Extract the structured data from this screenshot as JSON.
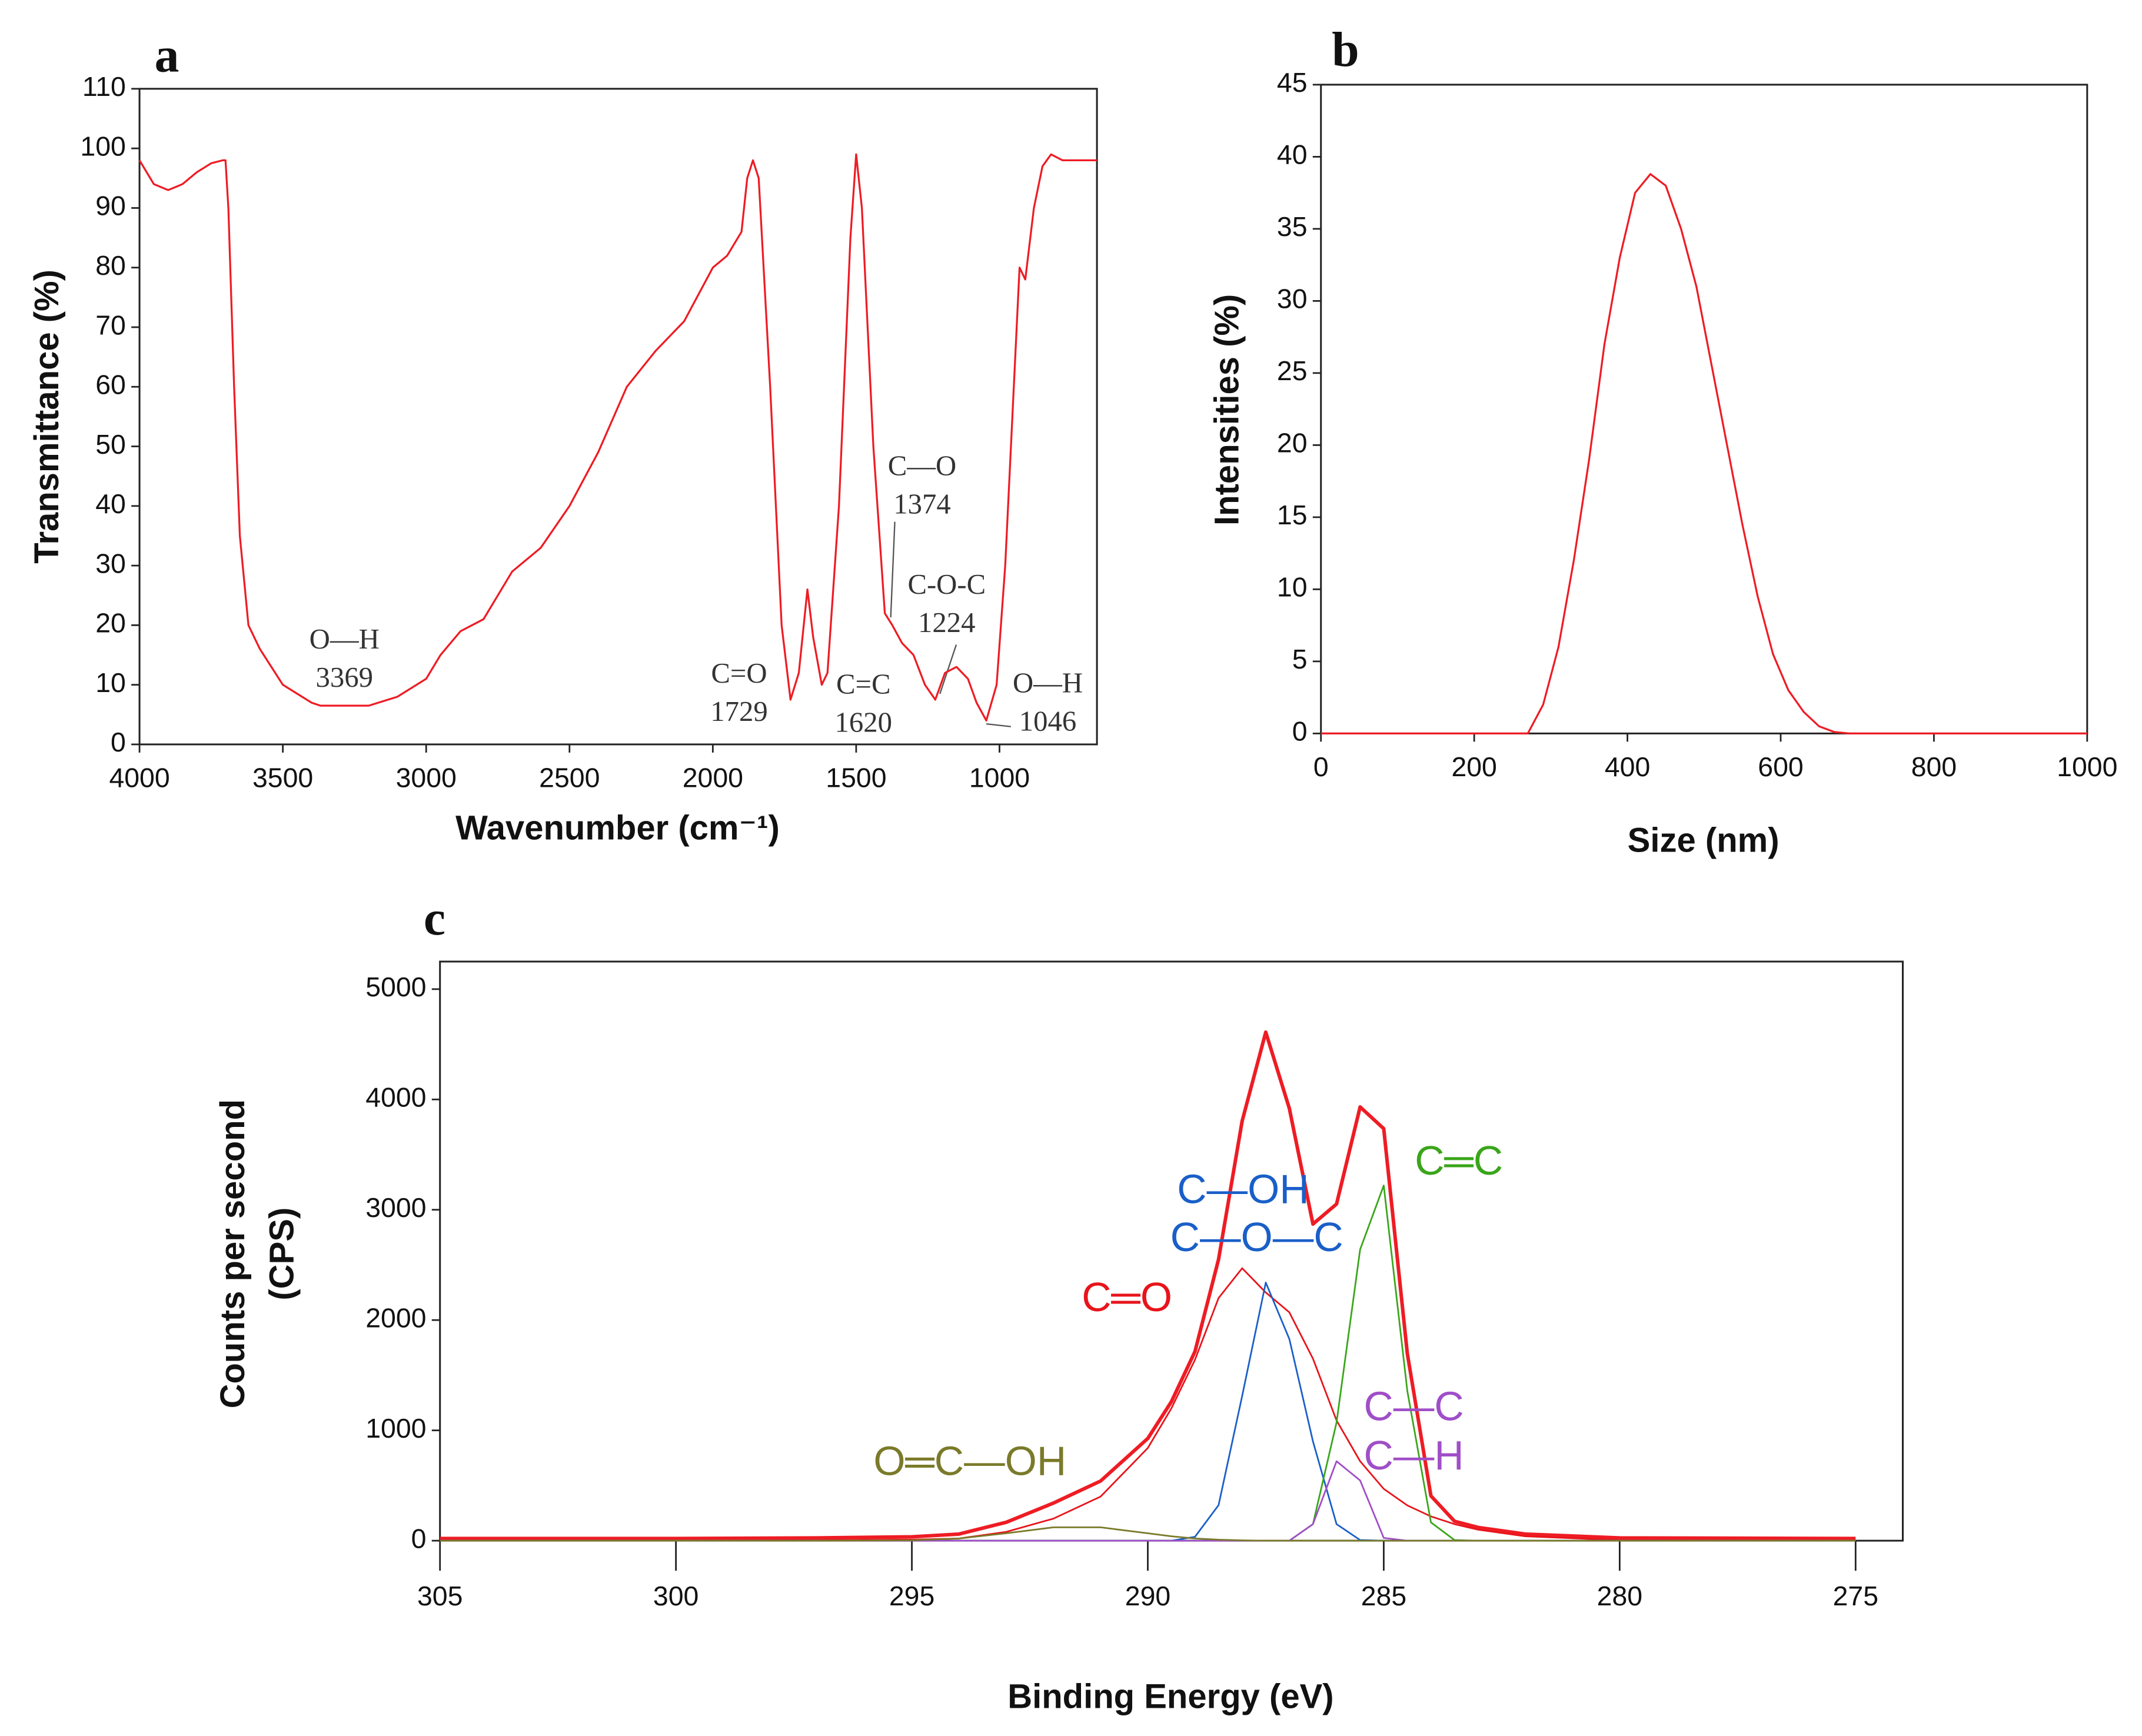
{
  "chart_data": [
    {
      "type": "line",
      "panel": "a",
      "xlabel": "Wavenumber (cm⁻¹)",
      "ylabel": "Transmittance (%)",
      "xlim": [
        4000,
        660
      ],
      "ylim": [
        0,
        110
      ],
      "xticks": [
        4000,
        3500,
        3000,
        2500,
        2000,
        1500,
        1000
      ],
      "yticks": [
        0,
        10,
        20,
        30,
        40,
        50,
        60,
        70,
        80,
        90,
        100,
        110
      ],
      "color": "#ee1c24",
      "x": [
        4000,
        3950,
        3900,
        3850,
        3800,
        3750,
        3710,
        3700,
        3690,
        3670,
        3650,
        3620,
        3580,
        3500,
        3400,
        3369,
        3300,
        3200,
        3100,
        3000,
        2950,
        2880,
        2800,
        2700,
        2650,
        2600,
        2500,
        2400,
        2300,
        2200,
        2100,
        2000,
        1950,
        1900,
        1880,
        1860,
        1840,
        1800,
        1760,
        1729,
        1700,
        1670,
        1650,
        1620,
        1600,
        1560,
        1520,
        1500,
        1480,
        1440,
        1400,
        1374,
        1340,
        1300,
        1260,
        1224,
        1190,
        1150,
        1110,
        1080,
        1046,
        1010,
        980,
        950,
        930,
        910,
        880,
        850,
        820,
        780,
        720,
        660
      ],
      "values": [
        98,
        94,
        93,
        94,
        96,
        97.5,
        98,
        98,
        90,
        60,
        35,
        20,
        16,
        10,
        7,
        6.5,
        6.5,
        6.5,
        8,
        11,
        15,
        19,
        21,
        29,
        31,
        33,
        40,
        49,
        60,
        66,
        71,
        80,
        82,
        86,
        95,
        98,
        95,
        60,
        20,
        7.5,
        12,
        26,
        18,
        10,
        12,
        40,
        85,
        99,
        90,
        50,
        22,
        20,
        17,
        15,
        10,
        7.5,
        12,
        13,
        11,
        7,
        4,
        10,
        30,
        60,
        80,
        78,
        90,
        97,
        99,
        98,
        98,
        98
      ],
      "annotations": [
        {
          "label": "O—H",
          "x": 3369
        },
        {
          "label": "C=O",
          "x": 1729
        },
        {
          "label": "C=C",
          "x": 1620
        },
        {
          "label": "C—O",
          "x": 1374
        },
        {
          "label": "C-O-C",
          "x": 1224
        },
        {
          "label": "O—H",
          "x": 1046
        }
      ]
    },
    {
      "type": "line",
      "panel": "b",
      "xlabel": "Size (nm)",
      "ylabel": "Intensities (%)",
      "xlim": [
        0,
        1000
      ],
      "ylim": [
        0,
        45
      ],
      "xticks": [
        0,
        200,
        400,
        600,
        800,
        1000
      ],
      "yticks": [
        0,
        5,
        10,
        15,
        20,
        25,
        30,
        35,
        40,
        45
      ],
      "color": "#ee1c24",
      "x": [
        0,
        270,
        290,
        310,
        330,
        350,
        370,
        390,
        410,
        430,
        450,
        470,
        490,
        510,
        530,
        550,
        570,
        590,
        610,
        630,
        650,
        670,
        690,
        1000
      ],
      "values": [
        0,
        0,
        2,
        6,
        12,
        19,
        27,
        33,
        37.5,
        38.8,
        38,
        35,
        31,
        25.5,
        20,
        14.5,
        9.5,
        5.5,
        3,
        1.5,
        0.5,
        0.1,
        0,
        0
      ]
    },
    {
      "type": "line",
      "panel": "c",
      "xlabel": "Binding Energy (eV)",
      "ylabel": [
        "Counts per second",
        "(CPS)"
      ],
      "xlim": [
        305,
        274
      ],
      "ylim": [
        0,
        5250
      ],
      "xticks": [
        305,
        300,
        295,
        290,
        285,
        280,
        275
      ],
      "yticks": [
        0,
        1000,
        2000,
        3000,
        4000,
        5000
      ],
      "x": [
        305,
        300,
        297,
        295,
        294,
        293,
        292,
        291,
        290,
        289.5,
        289,
        288.5,
        288,
        287.5,
        287,
        286.5,
        286,
        285.5,
        285,
        284.5,
        284,
        283.5,
        283,
        282,
        280,
        275
      ],
      "series": [
        {
          "color": "#ee1c24",
          "values": [
            20,
            20,
            25,
            35,
            60,
            167,
            341,
            541,
            927,
            1260,
            1715,
            2551,
            3805,
            4610,
            3918,
            2870,
            3052,
            3932,
            3735,
            1697,
            406,
            176,
            120,
            60,
            25,
            20
          ]
        },
        {
          "labels": [
            "C═O"
          ],
          "color": "#e8141b",
          "values": [
            0,
            0,
            3,
            10,
            20,
            80,
            200,
            400,
            840,
            1200,
            1640,
            2200,
            2470,
            2250,
            2070,
            1650,
            1090,
            720,
            470,
            320,
            220,
            150,
            100,
            40,
            5,
            0
          ]
        },
        {
          "labels": [
            "C—OH",
            "C—O—C"
          ],
          "color": "#1a5fc8",
          "values": [
            0,
            0,
            0,
            0,
            0,
            0,
            0,
            0,
            0,
            0,
            35,
            322,
            1312,
            2340,
            1828,
            900,
            150,
            6,
            0,
            0,
            0,
            0,
            0,
            0,
            0,
            0
          ]
        },
        {
          "labels": [
            "C═C"
          ],
          "color": "#3aa51a",
          "values": [
            0,
            0,
            0,
            0,
            0,
            0,
            0,
            0,
            0,
            0,
            0,
            0,
            0,
            0,
            0,
            150,
            1072,
            2640,
            3220,
            1357,
            166,
            6,
            0,
            0,
            0,
            0
          ]
        },
        {
          "labels": [
            "C—C",
            "C—H"
          ],
          "color": "#a04ec8",
          "values": [
            0,
            0,
            0,
            0,
            0,
            0,
            0,
            0,
            0,
            0,
            0,
            0,
            0,
            0,
            0,
            150,
            720,
            546,
            25,
            0,
            0,
            0,
            0,
            0,
            0,
            0
          ]
        },
        {
          "labels": [
            "O═C—OH"
          ],
          "color": "#7a7a2a",
          "values": [
            0,
            0,
            0,
            3,
            20,
            67,
            121,
            121,
            67,
            40,
            20,
            9,
            3,
            0,
            0,
            0,
            0,
            0,
            0,
            0,
            0,
            0,
            0,
            0,
            0,
            0
          ]
        }
      ]
    }
  ]
}
